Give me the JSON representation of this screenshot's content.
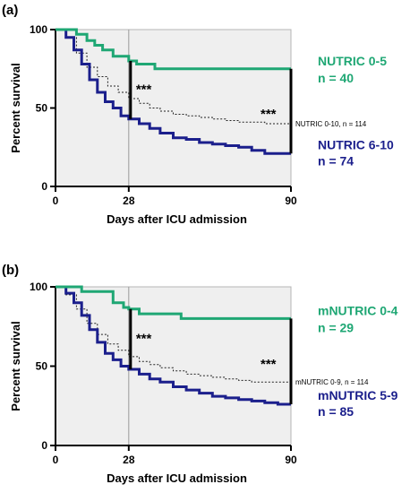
{
  "chart_data": [
    {
      "panel": "(a)",
      "type": "line",
      "xlabel": "Days after ICU admission",
      "ylabel": "Percent survival",
      "xlim": [
        0,
        90
      ],
      "ylim": [
        0,
        100
      ],
      "x_ticks": [
        "0",
        "28",
        "90"
      ],
      "y_ticks": [
        "0",
        "50",
        "100"
      ],
      "ref_day": 28,
      "background": "#efefef",
      "annotations": [
        "***",
        "***"
      ],
      "series": [
        {
          "name_line1": "NUTRIC 0-5",
          "name_line2": "n = 40",
          "color": "#1fa774",
          "style": "thick",
          "x": [
            0,
            8,
            12,
            15,
            18,
            22,
            28,
            31,
            38,
            45,
            60,
            75,
            90
          ],
          "y": [
            100,
            97,
            93,
            90,
            87,
            83,
            80,
            78,
            75,
            75,
            75,
            75,
            75
          ]
        },
        {
          "name_line1": "NUTRIC 0-10, n = 114",
          "color": "#222222",
          "style": "dashed",
          "x": [
            0,
            4,
            8,
            12,
            16,
            20,
            24,
            28,
            32,
            36,
            40,
            45,
            50,
            55,
            60,
            65,
            70,
            75,
            80,
            85,
            90
          ],
          "y": [
            100,
            95,
            85,
            76,
            70,
            64,
            60,
            56,
            53,
            50,
            48,
            46,
            45,
            44,
            43,
            42,
            41,
            41,
            40,
            40,
            40
          ]
        },
        {
          "name_line1": "NUTRIC 6-10",
          "name_line2": "n = 74",
          "color": "#1b1f8c",
          "style": "thick",
          "x": [
            0,
            4,
            7,
            10,
            13,
            16,
            19,
            22,
            25,
            28,
            32,
            36,
            40,
            45,
            50,
            55,
            60,
            65,
            70,
            75,
            80,
            85,
            90
          ],
          "y": [
            100,
            95,
            87,
            78,
            68,
            60,
            54,
            50,
            45,
            43,
            40,
            37,
            34,
            31,
            30,
            28,
            27,
            26,
            25,
            23,
            21,
            21,
            21
          ]
        }
      ]
    },
    {
      "panel": "(b)",
      "type": "line",
      "xlabel": "Days after ICU admission",
      "ylabel": "Percent survival",
      "xlim": [
        0,
        90
      ],
      "ylim": [
        0,
        100
      ],
      "x_ticks": [
        "0",
        "28",
        "90"
      ],
      "y_ticks": [
        "0",
        "50",
        "100"
      ],
      "ref_day": 28,
      "background": "#efefef",
      "annotations": [
        "***",
        "***"
      ],
      "series": [
        {
          "name_line1": "mNUTRIC 0-4",
          "name_line2": "n = 29",
          "color": "#1fa774",
          "style": "thick",
          "x": [
            0,
            10,
            22,
            26,
            28,
            32,
            38,
            48,
            60,
            75,
            90
          ],
          "y": [
            100,
            97,
            90,
            87,
            86,
            83,
            83,
            80,
            80,
            80,
            80
          ]
        },
        {
          "name_line1": "mNUTRIC 0-9, n = 114",
          "color": "#222222",
          "style": "dashed",
          "x": [
            0,
            4,
            8,
            12,
            16,
            20,
            24,
            28,
            32,
            36,
            40,
            45,
            50,
            55,
            60,
            65,
            70,
            75,
            80,
            85,
            90
          ],
          "y": [
            100,
            95,
            86,
            77,
            70,
            64,
            60,
            56,
            53,
            51,
            49,
            47,
            45,
            44,
            43,
            42,
            41,
            40,
            40,
            40,
            40
          ]
        },
        {
          "name_line1": "mNUTRIC 5-9",
          "name_line2": "n = 85",
          "color": "#1b1f8c",
          "style": "thick",
          "x": [
            0,
            4,
            7,
            10,
            13,
            16,
            19,
            22,
            25,
            28,
            32,
            36,
            40,
            45,
            50,
            55,
            60,
            65,
            70,
            75,
            80,
            85,
            90
          ],
          "y": [
            100,
            96,
            90,
            82,
            73,
            65,
            58,
            54,
            50,
            48,
            45,
            42,
            40,
            37,
            35,
            33,
            31,
            30,
            29,
            28,
            27,
            26,
            26
          ]
        }
      ]
    }
  ]
}
